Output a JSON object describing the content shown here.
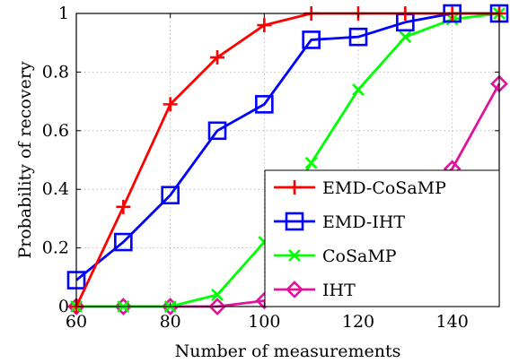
{
  "chart_data": {
    "type": "line",
    "xlabel": "Number of measurements",
    "ylabel": "Probability of recovery",
    "xlim": [
      60,
      150
    ],
    "ylim": [
      0,
      1
    ],
    "x_ticks": [
      60,
      80,
      100,
      120,
      140
    ],
    "y_ticks": [
      0,
      0.2,
      0.4,
      0.6,
      0.8,
      1
    ],
    "grid": true,
    "legend_position": "bottom-right",
    "x": [
      60,
      70,
      80,
      90,
      100,
      110,
      120,
      130,
      140,
      150
    ],
    "series": [
      {
        "name": "EMD-CoSaMP",
        "color": "#ff0000",
        "marker": "plus",
        "values": [
          0.0,
          0.34,
          0.69,
          0.85,
          0.96,
          1.0,
          1.0,
          1.0,
          1.0,
          1.0
        ]
      },
      {
        "name": "EMD-IHT",
        "color": "#0000ff",
        "marker": "square",
        "values": [
          0.09,
          0.22,
          0.38,
          0.6,
          0.69,
          0.91,
          0.92,
          0.97,
          1.0,
          1.0
        ]
      },
      {
        "name": "CoSaMP",
        "color": "#00ff00",
        "marker": "cross",
        "values": [
          0.0,
          0.0,
          0.0,
          0.04,
          0.22,
          0.49,
          0.74,
          0.92,
          0.98,
          1.0
        ]
      },
      {
        "name": "IHT",
        "color": "#e0139b",
        "marker": "diamond",
        "values": [
          0.0,
          0.0,
          0.0,
          0.0,
          0.02,
          0.06,
          0.2,
          0.35,
          0.47,
          0.76
        ]
      }
    ]
  }
}
